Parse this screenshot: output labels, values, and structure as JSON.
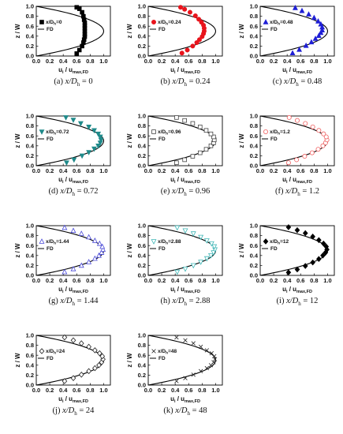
{
  "figure": {
    "ylabel_main": "z / W",
    "xlabel_main": "u",
    "xlabel_sub": "i",
    "xlabel_tail": " / u",
    "xlabel_tail_sub": "max,FD",
    "fd_label": "FD",
    "xticks": [
      "0.0",
      "0.2",
      "0.4",
      "0.6",
      "0.8",
      "1.0"
    ],
    "yticks": [
      "0.0",
      "0.2",
      "0.4",
      "0.6",
      "0.8",
      "1.0"
    ]
  },
  "chart_data": [
    {
      "type": "scatter",
      "caption": "(a) x/D",
      "caption_sub": "h",
      "caption_val": " = 0",
      "legend": "x/D",
      "legend_sub": "h",
      "legend_val": "=0",
      "marker": "square-filled",
      "color": "#000000",
      "xlim": [
        0,
        1.1
      ],
      "ylim": [
        0,
        1
      ],
      "x": [
        0.6,
        0.64,
        0.68,
        0.7,
        0.71,
        0.72,
        0.72,
        0.72,
        0.72,
        0.72,
        0.72,
        0.71,
        0.7,
        0.68,
        0.64,
        0.6
      ],
      "y": [
        0.05,
        0.12,
        0.2,
        0.27,
        0.33,
        0.39,
        0.44,
        0.5,
        0.56,
        0.61,
        0.67,
        0.73,
        0.8,
        0.88,
        0.95,
        0.98
      ]
    },
    {
      "type": "scatter",
      "caption": "(b) x/D",
      "caption_sub": "h",
      "caption_val": " = 0.24",
      "legend": "x/D",
      "legend_sub": "h",
      "legend_val": "=0.24",
      "marker": "circle-filled",
      "color": "#e8141c",
      "xlim": [
        0,
        1.1
      ],
      "ylim": [
        0,
        1
      ],
      "x": [
        0.5,
        0.58,
        0.66,
        0.72,
        0.76,
        0.8,
        0.82,
        0.83,
        0.83,
        0.82,
        0.79,
        0.75,
        0.7,
        0.62,
        0.54,
        0.48
      ],
      "y": [
        0.06,
        0.12,
        0.2,
        0.27,
        0.33,
        0.39,
        0.45,
        0.5,
        0.56,
        0.62,
        0.68,
        0.74,
        0.81,
        0.88,
        0.94,
        0.98
      ]
    },
    {
      "type": "scatter",
      "caption": "(c) x/D",
      "caption_sub": "h",
      "caption_val": " = 0.48",
      "legend": "x/D",
      "legend_sub": "h",
      "legend_val": "=0.48",
      "marker": "triangle-up-filled",
      "color": "#1f1fd6",
      "xlim": [
        0,
        1.1
      ],
      "ylim": [
        0,
        1
      ],
      "x": [
        0.48,
        0.58,
        0.68,
        0.76,
        0.82,
        0.87,
        0.9,
        0.92,
        0.92,
        0.9,
        0.86,
        0.8,
        0.72,
        0.62,
        0.52
      ],
      "y": [
        0.06,
        0.13,
        0.21,
        0.28,
        0.35,
        0.41,
        0.47,
        0.52,
        0.58,
        0.64,
        0.7,
        0.77,
        0.84,
        0.91,
        0.97
      ]
    },
    {
      "type": "scatter",
      "caption": "(d) x/D",
      "caption_sub": "h",
      "caption_val": " = 0.72",
      "legend": "x/D",
      "legend_sub": "h",
      "legend_val": "=0.72",
      "marker": "triangle-down-filled",
      "color": "#1f8a8a",
      "xlim": [
        0,
        1.1
      ],
      "ylim": [
        0,
        1
      ],
      "x": [
        0.45,
        0.56,
        0.68,
        0.78,
        0.86,
        0.92,
        0.95,
        0.96,
        0.95,
        0.92,
        0.86,
        0.78,
        0.66,
        0.55,
        0.44
      ],
      "y": [
        0.06,
        0.12,
        0.2,
        0.27,
        0.34,
        0.4,
        0.46,
        0.52,
        0.58,
        0.64,
        0.71,
        0.78,
        0.85,
        0.92,
        0.97
      ]
    },
    {
      "type": "scatter",
      "caption": "(e) x/D",
      "caption_sub": "h",
      "caption_val": " = 0.96",
      "legend": "x/D",
      "legend_sub": "h",
      "legend_val": "=0.96",
      "marker": "square-open",
      "color": "#444444",
      "xlim": [
        0,
        1.1
      ],
      "ylim": [
        0,
        1
      ],
      "x": [
        0.42,
        0.54,
        0.66,
        0.77,
        0.86,
        0.93,
        0.97,
        0.98,
        0.97,
        0.93,
        0.86,
        0.77,
        0.66,
        0.54,
        0.42
      ],
      "y": [
        0.06,
        0.12,
        0.19,
        0.26,
        0.33,
        0.4,
        0.46,
        0.52,
        0.58,
        0.64,
        0.71,
        0.78,
        0.85,
        0.91,
        0.97
      ]
    },
    {
      "type": "scatter",
      "caption": "(f) x/D",
      "caption_sub": "h",
      "caption_val": " = 1.2",
      "legend": "x/D",
      "legend_sub": "h",
      "legend_val": "=1.2",
      "marker": "circle-open",
      "color": "#f06060",
      "xlim": [
        0,
        1.1
      ],
      "ylim": [
        0,
        1
      ],
      "x": [
        0.42,
        0.54,
        0.66,
        0.77,
        0.86,
        0.93,
        0.97,
        0.99,
        0.98,
        0.94,
        0.87,
        0.78,
        0.67,
        0.55,
        0.43
      ],
      "y": [
        0.06,
        0.12,
        0.19,
        0.26,
        0.33,
        0.4,
        0.46,
        0.52,
        0.58,
        0.64,
        0.71,
        0.78,
        0.85,
        0.91,
        0.97
      ]
    },
    {
      "type": "scatter",
      "caption": "(g) x/D",
      "caption_sub": "h",
      "caption_val": " = 1.44",
      "legend": "x/D",
      "legend_sub": "h",
      "legend_val": "=1.44",
      "marker": "triangle-up-open",
      "color": "#4a4ad8",
      "xlim": [
        0,
        1.1
      ],
      "ylim": [
        0,
        1
      ],
      "x": [
        0.42,
        0.55,
        0.67,
        0.78,
        0.87,
        0.93,
        0.97,
        0.99,
        0.98,
        0.94,
        0.87,
        0.78,
        0.67,
        0.55,
        0.42
      ],
      "y": [
        0.07,
        0.13,
        0.2,
        0.27,
        0.34,
        0.4,
        0.46,
        0.52,
        0.58,
        0.64,
        0.7,
        0.77,
        0.84,
        0.9,
        0.96
      ]
    },
    {
      "type": "scatter",
      "caption": "(h) x/D",
      "caption_sub": "h",
      "caption_val": " = 2.88",
      "legend": "x/D",
      "legend_sub": "h",
      "legend_val": "=2.88",
      "marker": "triangle-down-open",
      "color": "#3fb6b6",
      "xlim": [
        0,
        1.1
      ],
      "ylim": [
        0,
        1
      ],
      "x": [
        0.43,
        0.55,
        0.67,
        0.78,
        0.87,
        0.93,
        0.97,
        0.99,
        0.98,
        0.94,
        0.87,
        0.78,
        0.67,
        0.55,
        0.43
      ],
      "y": [
        0.07,
        0.13,
        0.2,
        0.27,
        0.34,
        0.4,
        0.46,
        0.52,
        0.58,
        0.64,
        0.7,
        0.77,
        0.84,
        0.9,
        0.96
      ]
    },
    {
      "type": "scatter",
      "caption": "(i) x/D",
      "caption_sub": "h",
      "caption_val": " = 12",
      "legend": "x/D",
      "legend_sub": "h",
      "legend_val": "=12",
      "marker": "diamond-filled",
      "color": "#000000",
      "xlim": [
        0,
        1.1
      ],
      "ylim": [
        0,
        1
      ],
      "x": [
        0.42,
        0.55,
        0.67,
        0.78,
        0.87,
        0.93,
        0.97,
        0.99,
        0.98,
        0.94,
        0.87,
        0.78,
        0.67,
        0.55,
        0.42
      ],
      "y": [
        0.06,
        0.12,
        0.19,
        0.26,
        0.33,
        0.4,
        0.46,
        0.52,
        0.58,
        0.64,
        0.71,
        0.78,
        0.85,
        0.91,
        0.97
      ]
    },
    {
      "type": "scatter",
      "caption": "(j) x/D",
      "caption_sub": "h",
      "caption_val": " = 24",
      "legend": "x/D",
      "legend_sub": "h",
      "legend_val": "=24",
      "marker": "diamond-open",
      "color": "#222222",
      "xlim": [
        0,
        1.1
      ],
      "ylim": [
        0,
        1
      ],
      "x": [
        0.42,
        0.55,
        0.67,
        0.78,
        0.87,
        0.93,
        0.97,
        0.99,
        0.98,
        0.94,
        0.87,
        0.78,
        0.67,
        0.55,
        0.42
      ],
      "y": [
        0.08,
        0.14,
        0.21,
        0.28,
        0.34,
        0.4,
        0.46,
        0.52,
        0.58,
        0.64,
        0.7,
        0.77,
        0.84,
        0.9,
        0.96
      ]
    },
    {
      "type": "scatter",
      "caption": "(k) x/D",
      "caption_sub": "h",
      "caption_val": " = 48",
      "legend": "x/D",
      "legend_sub": "h",
      "legend_val": "=48",
      "marker": "cross",
      "color": "#222222",
      "xlim": [
        0,
        1.1
      ],
      "ylim": [
        0,
        1
      ],
      "x": [
        0.42,
        0.55,
        0.67,
        0.78,
        0.87,
        0.93,
        0.97,
        0.99,
        0.98,
        0.94,
        0.87,
        0.78,
        0.67,
        0.55,
        0.42
      ],
      "y": [
        0.08,
        0.14,
        0.21,
        0.28,
        0.34,
        0.4,
        0.46,
        0.52,
        0.58,
        0.64,
        0.7,
        0.77,
        0.84,
        0.9,
        0.96
      ]
    }
  ]
}
